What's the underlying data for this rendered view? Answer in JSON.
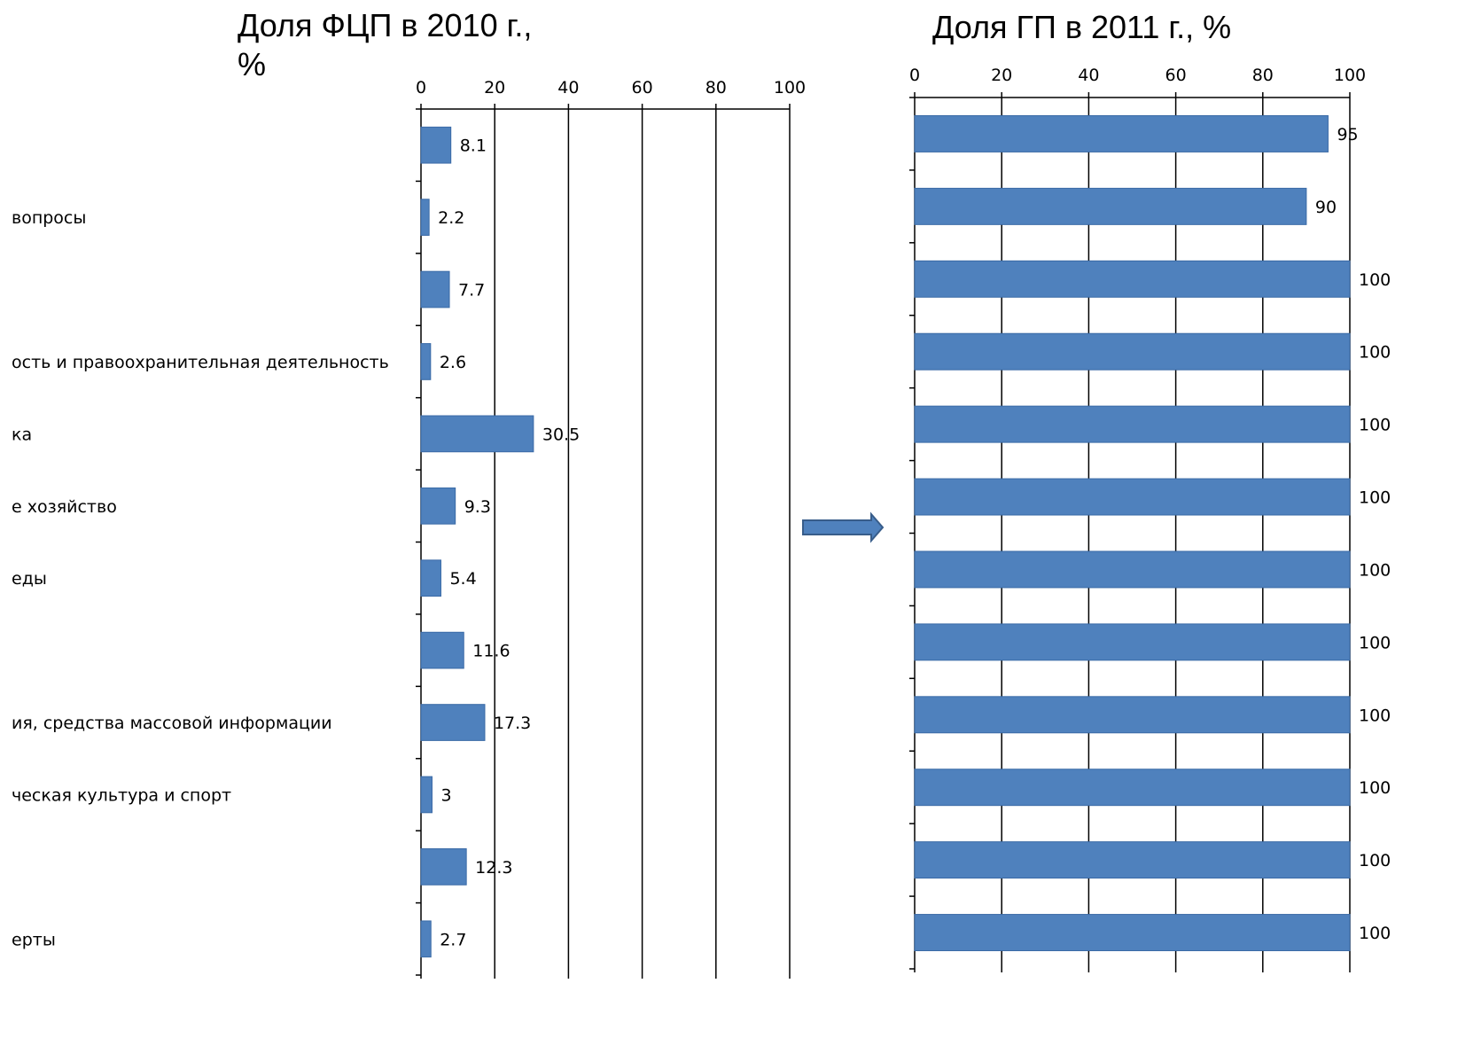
{
  "charts_title": {
    "left_line1": "Доля ФЦП в 2010 г.,",
    "left_line2": "%",
    "right": "Доля ГП в 2011 г., %"
  },
  "chart_data": [
    {
      "type": "bar",
      "orientation": "horizontal",
      "title": "Доля ФЦП в 2010 г., %",
      "categories": [
        "",
        "вопросы",
        "",
        "ость и правоохранительная деятельность",
        "ка",
        "е хозяйство",
        "еды",
        "",
        "ия, средства массовой информации",
        "ческая культура и спорт",
        "",
        "ерты"
      ],
      "values": [
        8.1,
        2.2,
        7.7,
        2.6,
        30.5,
        9.3,
        5.4,
        11.6,
        17.3,
        3,
        12.3,
        2.7
      ],
      "value_labels": [
        "8.1",
        "2.2",
        "7.7",
        "2.6",
        "30.5",
        "9.3",
        "5.4",
        "11.6",
        "17.3",
        "3",
        "12.3",
        "2.7"
      ],
      "xlim": [
        0,
        100
      ],
      "ticks": [
        "0",
        "20",
        "40",
        "60",
        "80",
        "100"
      ],
      "grid": true,
      "bar_color": "#4f81bd"
    },
    {
      "type": "bar",
      "orientation": "horizontal",
      "title": "Доля ГП в 2011 г., %",
      "categories": [
        "",
        "",
        "",
        "",
        "",
        "",
        "",
        "",
        "",
        "",
        "",
        ""
      ],
      "values": [
        95,
        90,
        100,
        100,
        100,
        100,
        100,
        100,
        100,
        100,
        100,
        100
      ],
      "value_labels": [
        "95",
        "90",
        "100",
        "100",
        "100",
        "100",
        "100",
        "100",
        "100",
        "100",
        "100",
        "100"
      ],
      "xlim": [
        0,
        100
      ],
      "ticks": [
        "0",
        "20",
        "40",
        "60",
        "80",
        "100"
      ],
      "grid": true,
      "bar_color": "#4f81bd"
    }
  ],
  "arrow": {
    "icon": "right-arrow-icon",
    "color": "#4f81bd"
  }
}
